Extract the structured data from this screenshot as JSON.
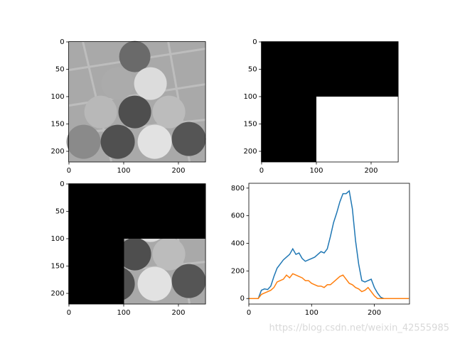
{
  "chart_data": [
    {
      "type": "image",
      "xlim": [
        -0.5,
        249.5
      ],
      "ylim": [
        219.5,
        -0.5
      ],
      "xticks": [
        0,
        100,
        200
      ],
      "yticks": [
        0,
        50,
        100,
        150,
        200
      ]
    },
    {
      "type": "image",
      "xlim": [
        -0.5,
        249.5
      ],
      "ylim": [
        219.5,
        -0.5
      ],
      "xticks": [
        0,
        100,
        200
      ],
      "yticks": [
        0,
        50,
        100,
        150,
        200
      ]
    },
    {
      "type": "image",
      "xlim": [
        -0.5,
        249.5
      ],
      "ylim": [
        219.5,
        -0.5
      ],
      "xticks": [
        0,
        100,
        200
      ],
      "yticks": [
        0,
        50,
        100,
        150,
        200
      ]
    },
    {
      "type": "line",
      "xlim": [
        0,
        256
      ],
      "ylim": [
        -40,
        835
      ],
      "xticks": [
        0,
        100,
        200
      ],
      "yticks": [
        0,
        200,
        400,
        600,
        800
      ],
      "x": [
        0,
        5,
        10,
        15,
        20,
        25,
        30,
        35,
        40,
        45,
        50,
        55,
        60,
        65,
        70,
        75,
        80,
        85,
        90,
        95,
        100,
        105,
        110,
        115,
        120,
        125,
        130,
        135,
        140,
        145,
        150,
        155,
        160,
        165,
        170,
        175,
        180,
        185,
        190,
        195,
        200,
        205,
        210,
        215,
        220,
        225,
        230,
        235,
        240,
        245,
        250,
        255
      ],
      "series": [
        {
          "color": "#1f77b4",
          "values": [
            0,
            0,
            0,
            0,
            60,
            70,
            65,
            90,
            160,
            220,
            250,
            280,
            300,
            320,
            360,
            320,
            330,
            290,
            270,
            280,
            290,
            300,
            320,
            340,
            330,
            360,
            450,
            550,
            620,
            700,
            760,
            760,
            780,
            650,
            420,
            250,
            130,
            120,
            130,
            140,
            80,
            40,
            10,
            0,
            0,
            0,
            0,
            0,
            0,
            0,
            0,
            0
          ]
        },
        {
          "color": "#ff7f0e",
          "values": [
            0,
            0,
            0,
            0,
            30,
            40,
            50,
            60,
            80,
            120,
            130,
            140,
            170,
            150,
            180,
            170,
            160,
            150,
            130,
            130,
            110,
            100,
            90,
            90,
            80,
            100,
            100,
            120,
            140,
            160,
            170,
            140,
            110,
            100,
            80,
            70,
            50,
            60,
            80,
            50,
            20,
            0,
            0,
            0,
            0,
            0,
            0,
            0,
            0,
            0,
            0,
            0
          ]
        }
      ]
    }
  ],
  "watermark": "https://blog.csdn.net/weixin_42555985"
}
